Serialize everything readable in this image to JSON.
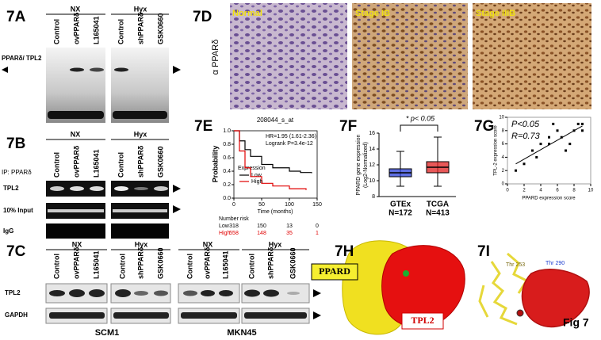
{
  "panel_7A": {
    "label": "7A",
    "groups": [
      "NX",
      "Hyx"
    ],
    "lanes": [
      "Control",
      "ovPPARδ",
      "L165041",
      "Control",
      "shPPARδ",
      "GSK0660"
    ],
    "band_label": "PPARδ/ TPL2"
  },
  "panel_7B": {
    "label": "7B",
    "groups": [
      "NX",
      "Hyx"
    ],
    "lanes": [
      "Control",
      "ovPPARδ",
      "L165041",
      "Control",
      "shPPARδ",
      "GSK0660"
    ],
    "ip_label": "IP: PPARδ",
    "rows": [
      "TPL2",
      "10% Input",
      "IgG"
    ]
  },
  "panel_7C": {
    "label": "7C",
    "groups": [
      "NX",
      "Hyx",
      "NX",
      "Hyx"
    ],
    "lanes": [
      "Control",
      "ovPPARδ",
      "L165041",
      "Control",
      "shPPARδ",
      "GSK0660",
      "Control",
      "ovPPARδ",
      "L165041",
      "Control",
      "shPPARδ",
      "GSK0660"
    ],
    "rows": [
      "TPL2",
      "GAPDH"
    ],
    "cell_lines": [
      "SCM1",
      "MKN45"
    ]
  },
  "panel_7D": {
    "label": "7D",
    "antibody": "α PPARδ",
    "stages": [
      "Normal",
      "Stage IB",
      "Stage IIIB"
    ]
  },
  "panel_7E": {
    "label": "7E",
    "title": "208044_s_at",
    "hr": "HR=1.95 (1.61-2.36)",
    "logrank": "Logrank P=3.4e-12",
    "y_label": "Probability",
    "x_label": "Time (months)",
    "xlim": [
      0,
      150
    ],
    "ylim": [
      0,
      1
    ],
    "xticks": [
      0,
      50,
      100,
      150
    ],
    "yticks": [
      {
        "value": 0,
        "label": "0.0"
      },
      {
        "value": 0.2,
        "label": "0.2"
      },
      {
        "value": 0.4,
        "label": "0.4"
      },
      {
        "value": 0.6,
        "label": "0.6"
      },
      {
        "value": 0.8,
        "label": "0.8"
      },
      {
        "value": 1,
        "label": "1.0"
      }
    ],
    "legend_title": "Expression",
    "series": [
      {
        "name": "Low",
        "color": "#000000",
        "x": [
          0,
          10,
          20,
          30,
          50,
          70,
          100,
          120,
          140
        ],
        "values": [
          1,
          0.85,
          0.72,
          0.62,
          0.5,
          0.45,
          0.4,
          0.38,
          0.37
        ]
      },
      {
        "name": "High",
        "color": "#e00000",
        "x": [
          0,
          10,
          20,
          30,
          50,
          70,
          100,
          130
        ],
        "values": [
          1,
          0.7,
          0.45,
          0.32,
          0.22,
          0.18,
          0.14,
          0.12
        ]
      }
    ],
    "risk_title": "Number risk",
    "risk": [
      [
        318,
        150,
        13,
        0
      ],
      [
        558,
        148,
        35,
        1
      ]
    ]
  },
  "panel_7F": {
    "label": "7F",
    "y_label": [
      "PPARD gene expression",
      "(Log2-Normalized)"
    ],
    "significance": "* p< 0.05",
    "ylim": [
      8,
      16
    ],
    "yticks": [
      8,
      10,
      12,
      14,
      16
    ],
    "categories": [
      "GTEx",
      "TCGA"
    ],
    "n_labels": [
      "N=172",
      "N=413"
    ],
    "colors": [
      "#2a3fd8",
      "#e02020"
    ],
    "boxes": [
      {
        "min": 9.3,
        "q1": 10.5,
        "median": 11,
        "q3": 11.5,
        "max": 13.7
      },
      {
        "min": 9.3,
        "q1": 11,
        "median": 11.7,
        "q3": 12.4,
        "max": 15.5
      }
    ]
  },
  "panel_7G": {
    "label": "7G",
    "p_value": "P<0.05",
    "r_value": "R=0.73",
    "x_label": "PPARD expression score",
    "y_label": "TPL-2 expression score",
    "xlim": [
      0,
      10
    ],
    "ylim": [
      0,
      10
    ],
    "xticks": [
      0,
      2,
      4,
      6,
      8,
      10
    ],
    "yticks": [
      0,
      2,
      4,
      6,
      8,
      10
    ],
    "x": [
      1,
      2,
      3,
      3.5,
      4,
      5,
      5,
      5.5,
      6,
      6.5,
      7,
      7.5,
      8,
      8.5,
      9,
      9
    ],
    "values": [
      2,
      3,
      5,
      4,
      6,
      6,
      7,
      9,
      8,
      7,
      5,
      6,
      8,
      9,
      8,
      9
    ],
    "fit": {
      "x": [
        1,
        9
      ],
      "values": [
        3,
        8.7
      ]
    }
  },
  "panel_7H": {
    "label": "7H",
    "labels": [
      "PPARD",
      "TPL2"
    ]
  },
  "panel_7I": {
    "label": "7I",
    "residues": [
      "Thr 253",
      "Thr 290"
    ]
  },
  "figure_label": "Fig 7"
}
